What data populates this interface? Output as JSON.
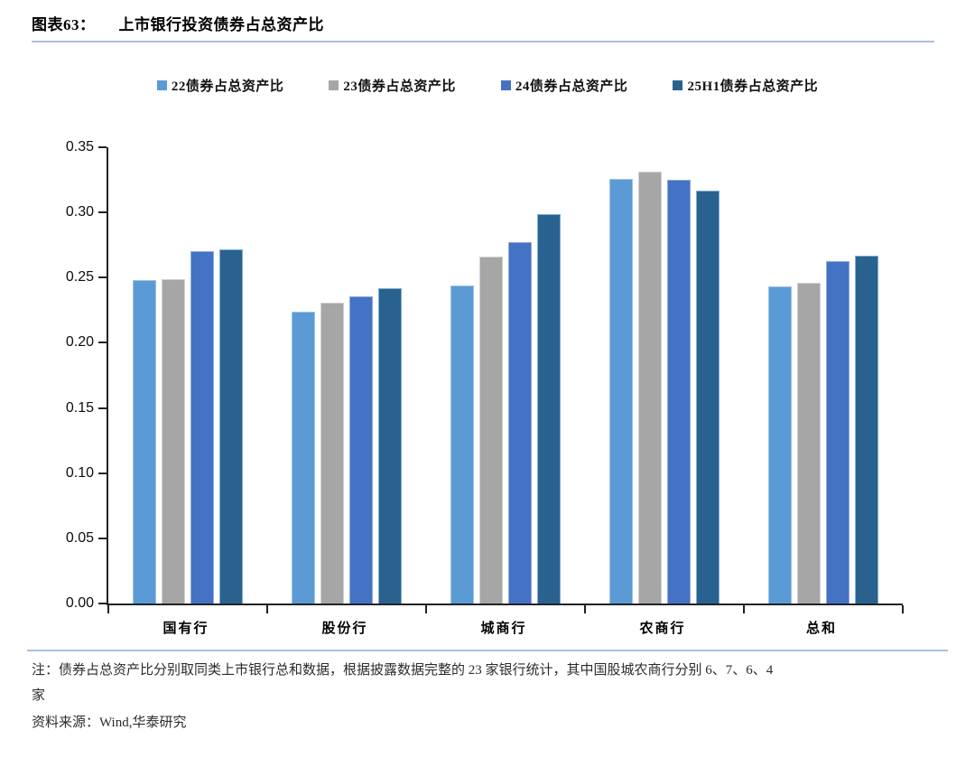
{
  "header": {
    "figure_label": "图表63：",
    "title": "上市银行投资债券占总资产比"
  },
  "legend": [
    {
      "label": "22债券占总资产比",
      "color": "#5b9bd5"
    },
    {
      "label": "23债券占总资产比",
      "color": "#a6a6a6"
    },
    {
      "label": "24债券占总资产比",
      "color": "#4472c4"
    },
    {
      "label": "25H1债券占总资产比",
      "color": "#2a628f"
    }
  ],
  "chart_data": {
    "type": "bar",
    "title": "上市银行投资债券占总资产比",
    "categories": [
      "国有行",
      "股份行",
      "城商行",
      "农商行",
      "总和"
    ],
    "series": [
      {
        "name": "22债券占总资产比",
        "color": "#5b9bd5",
        "border_color": "#9dc3e6",
        "values": [
          0.248,
          0.224,
          0.244,
          0.326,
          0.243
        ]
      },
      {
        "name": "23债券占总资产比",
        "color": "#a6a6a6",
        "border_color": "#d0d0d0",
        "values": [
          0.249,
          0.231,
          0.266,
          0.331,
          0.246
        ]
      },
      {
        "name": "24债券占总资产比",
        "color": "#4472c4",
        "border_color": "#8faadc",
        "values": [
          0.27,
          0.236,
          0.277,
          0.325,
          0.263
        ]
      },
      {
        "name": "25H1债券占总资产比",
        "color": "#2a628f",
        "border_color": "#7eafd4",
        "values": [
          0.272,
          0.242,
          0.299,
          0.317,
          0.267
        ]
      }
    ],
    "xlabel": "",
    "ylabel": "",
    "ylim": [
      0,
      0.35
    ],
    "y_tick_labels": [
      "0.00",
      "0.05",
      "0.10",
      "0.15",
      "0.20",
      "0.25",
      "0.30",
      "0.35"
    ],
    "grid": false,
    "legend_position": "top"
  },
  "footnote": {
    "note_line1": "注：债券占总资产比分别取同类上市银行总和数据，根据披露数据完整的 23 家银行统计，其中国股城农商行分别 6、7、6、4",
    "note_line2": "家",
    "source": "资料来源：Wind,华泰研究"
  }
}
